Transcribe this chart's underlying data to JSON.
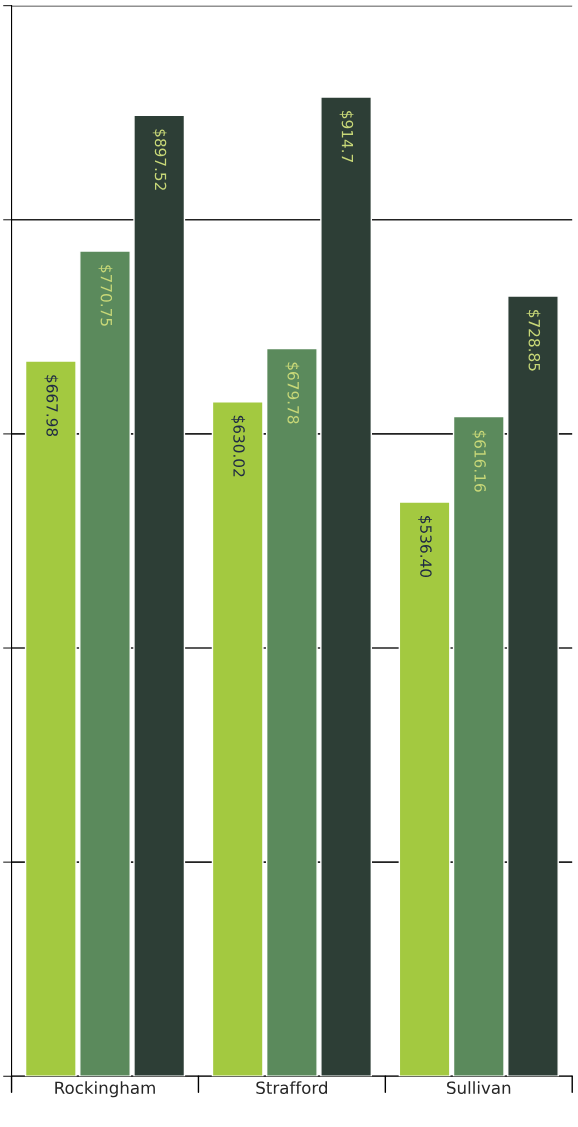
{
  "chart_data": {
    "type": "bar",
    "categories": [
      "Rockingham",
      "Strafford",
      "Sullivan"
    ],
    "series": [
      {
        "color": "#a3c940",
        "values": [
          667.98,
          630.02,
          536.4
        ],
        "value_labels": [
          "$667.98",
          "$630.02",
          "$536.40"
        ]
      },
      {
        "color": "#5b8a5c",
        "values": [
          770.75,
          679.78,
          616.16
        ],
        "value_labels": [
          "$770.75",
          "$679.78",
          "$616.16"
        ]
      },
      {
        "color": "#2d3e36",
        "values": [
          897.52,
          914.7,
          728.85
        ],
        "value_labels": [
          "$897.52",
          "$914.7",
          "$728.85"
        ]
      }
    ],
    "ylim": [
      0,
      1000
    ],
    "yticks": [
      {
        "value": 0,
        "label": null
      },
      {
        "value": 200,
        "label": null
      },
      {
        "value": 400,
        "label": null
      },
      {
        "value": 600,
        "label": null
      },
      {
        "value": 800,
        "label": null
      },
      {
        "value": 1000,
        "label": null
      }
    ],
    "grid": "y",
    "legend": false,
    "tick_labels": "x"
  }
}
